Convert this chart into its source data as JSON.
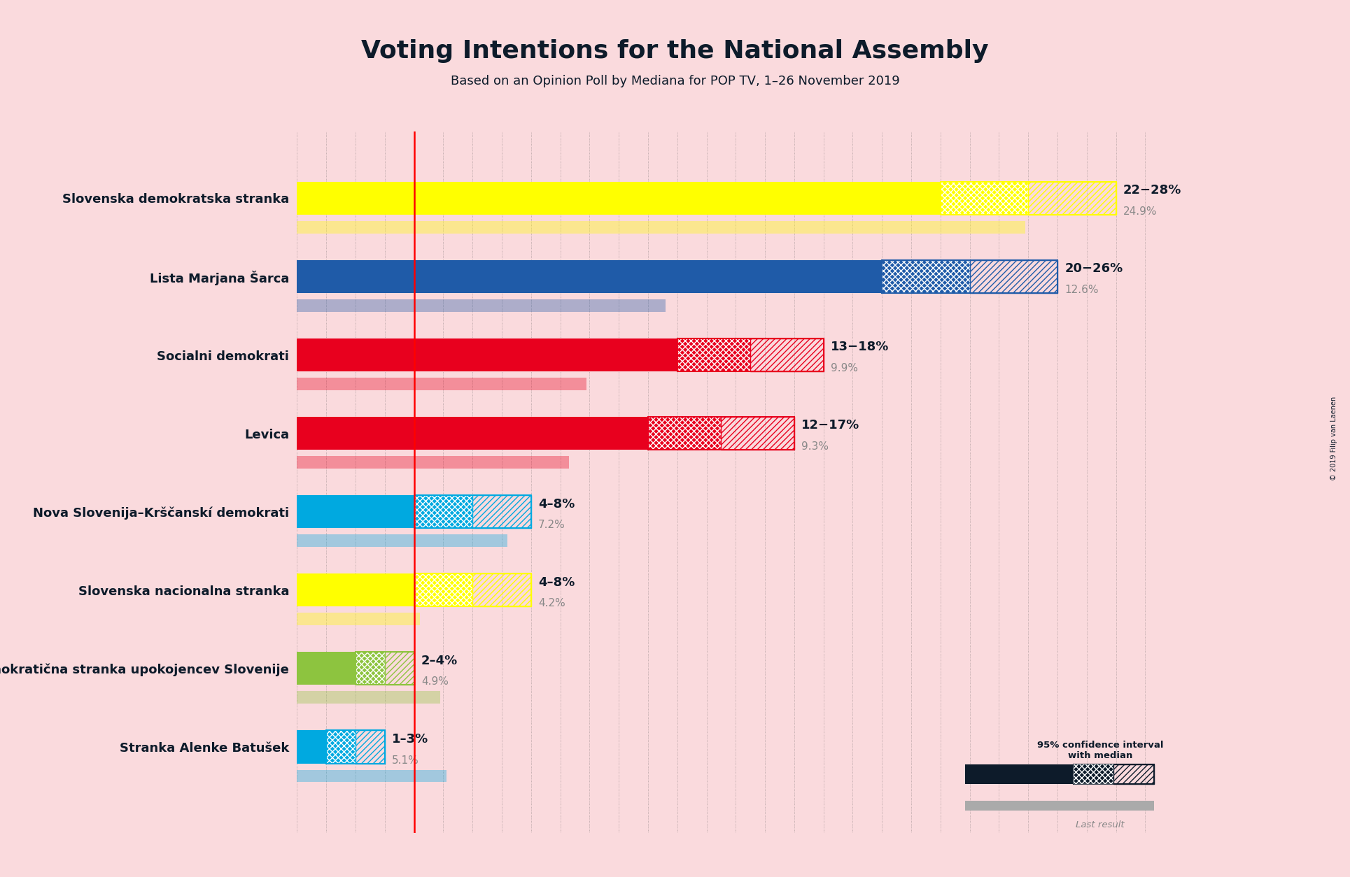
{
  "title": "Voting Intentions for the National Assembly",
  "subtitle": "Based on an Opinion Poll by Mediana for POP TV, 1–26 November 2019",
  "copyright": "© 2019 Filip van Laenen",
  "background_color": "#fadadd",
  "parties": [
    {
      "name": "Slovenska demokratska stranka",
      "color": "#FFFF00",
      "ci_low": 22,
      "ci_high": 28,
      "median": 25,
      "last_result": 24.9,
      "label": "22−28%",
      "last_label": "24.9%"
    },
    {
      "name": "Lista Marjana Šarca",
      "color": "#1F5BA8",
      "ci_low": 20,
      "ci_high": 26,
      "median": 23,
      "last_result": 12.6,
      "label": "20−26%",
      "last_label": "12.6%"
    },
    {
      "name": "Socialni demokrati",
      "color": "#E8001E",
      "ci_low": 13,
      "ci_high": 18,
      "median": 15.5,
      "last_result": 9.9,
      "label": "13−18%",
      "last_label": "9.9%"
    },
    {
      "name": "Levica",
      "color": "#E8001E",
      "ci_low": 12,
      "ci_high": 17,
      "median": 14.5,
      "last_result": 9.3,
      "label": "12−17%",
      "last_label": "9.3%"
    },
    {
      "name": "Nova Slovenija–Krščansk i demokrati",
      "color": "#00A9E0",
      "ci_low": 4,
      "ci_high": 8,
      "median": 6,
      "last_result": 7.2,
      "label": "4–8%",
      "last_label": "7.2%"
    },
    {
      "name": "Slovenska nacionalna stranka",
      "color": "#FFFF00",
      "ci_low": 4,
      "ci_high": 8,
      "median": 6,
      "last_result": 4.2,
      "label": "4–8%",
      "last_label": "4.2%"
    },
    {
      "name": "Demokratična stranka upokojencev Slovenije",
      "color": "#8DC43F",
      "ci_low": 2,
      "ci_high": 4,
      "median": 3,
      "last_result": 4.9,
      "label": "2–4%",
      "last_label": "4.9%"
    },
    {
      "name": "Stranka Alenke Batušek",
      "color": "#00A9E0",
      "ci_low": 1,
      "ci_high": 3,
      "median": 2,
      "last_result": 5.1,
      "label": "1–3%",
      "last_label": "5.1%"
    }
  ],
  "x_max": 30,
  "threshold_line": 4,
  "text_color": "#0d1b2a",
  "label_color": "#0d1b2a",
  "last_color": "#888888",
  "grid_color": "#555555"
}
